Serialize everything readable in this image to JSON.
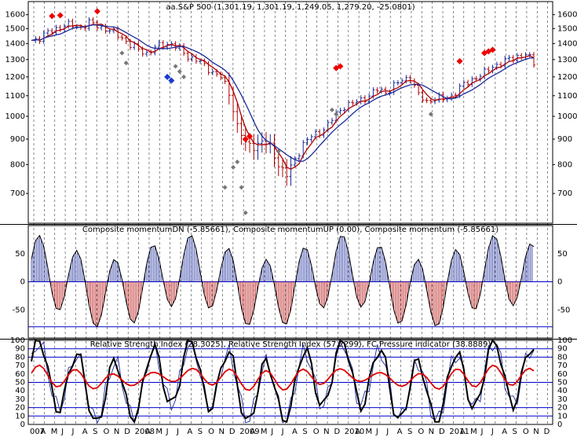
{
  "chart_data": [
    {
      "type": "candlestick",
      "title": "aa.S&P 500 (1,301.19, 1,301.19, 1,249.05, 1,279.20, -25.0801)",
      "ylim": [
        610,
        1700
      ],
      "scale": "log",
      "yticks": [
        700,
        800,
        900,
        1000,
        1100,
        1200,
        1300,
        1400,
        1500,
        1600
      ],
      "price_path": [
        [
          0,
          1420
        ],
        [
          2,
          1440
        ],
        [
          4,
          1470
        ],
        [
          6,
          1500
        ],
        [
          8,
          1525
        ],
        [
          10,
          1520
        ],
        [
          12,
          1510
        ],
        [
          14,
          1540
        ],
        [
          16,
          1520
        ],
        [
          18,
          1500
        ],
        [
          20,
          1470
        ],
        [
          22,
          1440
        ],
        [
          24,
          1390
        ],
        [
          26,
          1360
        ],
        [
          28,
          1340
        ],
        [
          30,
          1370
        ],
        [
          32,
          1395
        ],
        [
          34,
          1400
        ],
        [
          36,
          1360
        ],
        [
          38,
          1320
        ],
        [
          40,
          1300
        ],
        [
          42,
          1260
        ],
        [
          44,
          1230
        ],
        [
          46,
          1200
        ],
        [
          48,
          1110
        ],
        [
          50,
          960
        ],
        [
          52,
          880
        ],
        [
          54,
          870
        ],
        [
          56,
          890
        ],
        [
          58,
          870
        ],
        [
          60,
          800
        ],
        [
          62,
          760
        ],
        [
          64,
          820
        ],
        [
          66,
          880
        ],
        [
          68,
          910
        ],
        [
          70,
          930
        ],
        [
          72,
          960
        ],
        [
          74,
          1010
        ],
        [
          76,
          1050
        ],
        [
          78,
          1060
        ],
        [
          80,
          1080
        ],
        [
          82,
          1100
        ],
        [
          84,
          1130
        ],
        [
          86,
          1120
        ],
        [
          88,
          1150
        ],
        [
          90,
          1180
        ],
        [
          92,
          1200
        ],
        [
          94,
          1100
        ],
        [
          96,
          1070
        ],
        [
          98,
          1090
        ],
        [
          100,
          1080
        ],
        [
          102,
          1100
        ],
        [
          104,
          1140
        ],
        [
          106,
          1170
        ],
        [
          108,
          1200
        ],
        [
          110,
          1220
        ],
        [
          112,
          1260
        ],
        [
          114,
          1280
        ],
        [
          116,
          1300
        ],
        [
          118,
          1320
        ],
        [
          120,
          1330
        ],
        [
          122,
          1279
        ]
      ],
      "red_markers": [
        [
          5,
          1590
        ],
        [
          7,
          1595
        ],
        [
          16,
          1625
        ],
        [
          52,
          900
        ],
        [
          53,
          912
        ],
        [
          74,
          1250
        ],
        [
          75,
          1260
        ],
        [
          104,
          1290
        ],
        [
          110,
          1340
        ],
        [
          111,
          1350
        ],
        [
          112,
          1360
        ]
      ],
      "grey_markers": [
        [
          22,
          1340
        ],
        [
          23,
          1280
        ],
        [
          35,
          1260
        ],
        [
          36,
          1230
        ],
        [
          37,
          1200
        ],
        [
          47,
          720
        ],
        [
          49,
          790
        ],
        [
          50,
          810
        ],
        [
          51,
          720
        ],
        [
          52,
          640
        ],
        [
          60,
          850
        ],
        [
          73,
          1030
        ],
        [
          74,
          1010
        ],
        [
          97,
          1010
        ]
      ],
      "blue_markers": [
        [
          33,
          1200
        ],
        [
          34,
          1180
        ]
      ]
    },
    {
      "type": "bar",
      "title": "Composite momentumDN (-5.85661), Composite momentumUP (0.00), Composite momentum (-5.85661)",
      "ylim": [
        -100,
        100
      ],
      "yticks": [
        -50,
        0,
        50
      ],
      "reference_lines": [
        0,
        -80
      ],
      "components": [
        {
          "period": 9.2,
          "amplitude": 62,
          "phase": 0.3
        },
        {
          "period": 38,
          "amplitude": 22,
          "phase": 1.6
        }
      ]
    },
    {
      "type": "line",
      "title": "Relative Strength Index (28.3025), Relative Strength Index (57.2299), FC Pressure indicator (38.8889)",
      "ylim": [
        0,
        100
      ],
      "yticks": [
        0,
        10,
        20,
        30,
        40,
        50,
        60,
        70,
        80,
        90,
        100
      ],
      "reference_lines": [
        10,
        20,
        50,
        80,
        90
      ],
      "series": [
        {
          "name": "Relative Strength Index (28.3025)",
          "color": "#000000"
        },
        {
          "name": "Relative Strength Index (57.2299)",
          "color": "#e00000"
        },
        {
          "name": "FC Pressure indicator (38.8889)",
          "color": "#1a2a9a"
        }
      ]
    }
  ],
  "x_axis": {
    "labels": [
      "007",
      "A",
      "M",
      "J",
      "J",
      "A",
      "S",
      "O",
      "N",
      "D",
      "2008",
      "A",
      "M",
      "J",
      "J",
      "A",
      "S",
      "O",
      "N",
      "D",
      "2009",
      "A",
      "M",
      "J",
      "J",
      "A",
      "S",
      "O",
      "N",
      "D",
      "2010",
      "A",
      "M",
      "J",
      "J",
      "A",
      "S",
      "O",
      "N",
      "D",
      "2011",
      "A",
      "M",
      "J",
      "J",
      "A",
      "S",
      "O",
      "N",
      "D"
    ]
  },
  "colors": {
    "up_line": "#1a2a9a",
    "down_line": "#b00000",
    "marker_red": "#ee0000",
    "marker_grey": "#777777",
    "marker_blue": "#1a3ad0",
    "grid": "#000000",
    "hline_blue": "#0000cc",
    "hline_red": "#cc0000"
  }
}
